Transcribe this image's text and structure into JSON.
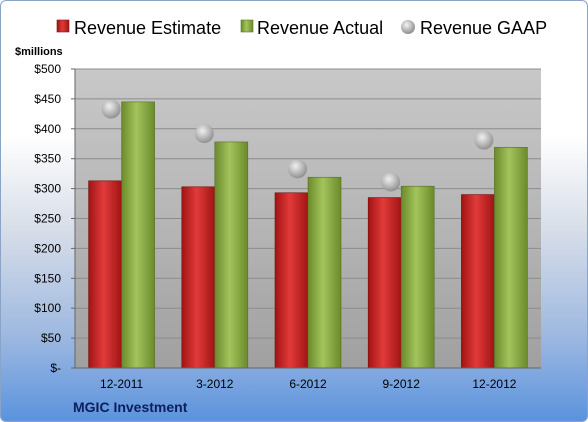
{
  "chart_data": {
    "type": "bar",
    "unit_label": "$millions",
    "company": "MGIC Investment",
    "categories": [
      "12-2011",
      "3-2012",
      "6-2012",
      "9-2012",
      "12-2012"
    ],
    "series": [
      {
        "name": "Revenue Estimate",
        "type": "bar",
        "color": "#d42a2a",
        "values": [
          313,
          303,
          293,
          285,
          290
        ]
      },
      {
        "name": "Revenue Actual",
        "type": "bar",
        "color": "#8fb04a",
        "values": [
          445,
          378,
          319,
          304,
          369
        ]
      },
      {
        "name": "Revenue GAAP",
        "type": "scatter",
        "color": "#b8b8b8",
        "values": [
          433,
          392,
          333,
          311,
          381
        ]
      }
    ],
    "ylim": [
      0,
      500
    ],
    "yticks": [
      0,
      50,
      100,
      150,
      200,
      250,
      300,
      350,
      400,
      450,
      500
    ],
    "ytick_labels": [
      "$-",
      "$50",
      "$100",
      "$150",
      "$200",
      "$250",
      "$300",
      "$350",
      "$400",
      "$450",
      "$500"
    ],
    "grid": true,
    "legend_position": "top"
  }
}
